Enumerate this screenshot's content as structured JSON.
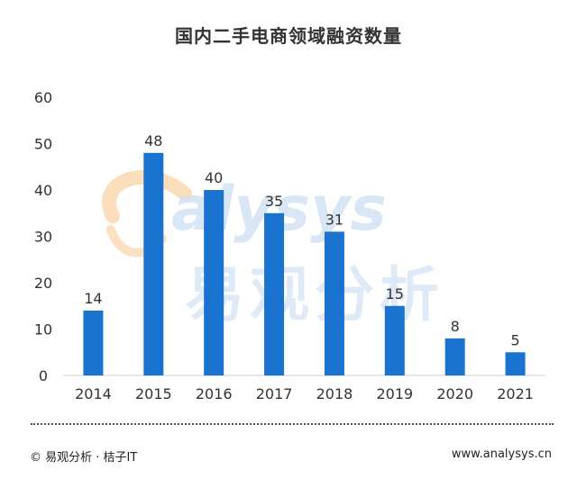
{
  "chart_data": {
    "type": "bar",
    "title": "国内二手电商领域融资数量",
    "categories": [
      "2014",
      "2015",
      "2016",
      "2017",
      "2018",
      "2019",
      "2020",
      "2021"
    ],
    "values": [
      14,
      48,
      40,
      35,
      31,
      15,
      8,
      5
    ],
    "ylim": [
      0,
      60
    ],
    "yticks": [
      0,
      10,
      20,
      30,
      40,
      50,
      60
    ],
    "xlabel": "",
    "ylabel": "",
    "grid": false,
    "legend": "none",
    "bar_color": "#1a73cf"
  },
  "watermark": {
    "logo_text": "analysys",
    "brand_text": "易观分析"
  },
  "footer": {
    "source": "© 易观分析 · 桔子IT",
    "url": "www.analysys.cn"
  },
  "colors": {
    "bar": "#1a73cf",
    "text": "#333333",
    "axis": "#cccccc"
  }
}
